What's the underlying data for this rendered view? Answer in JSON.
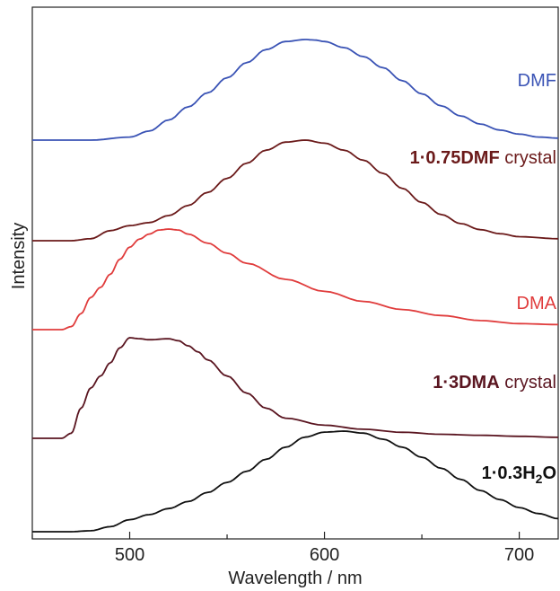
{
  "chart_data": {
    "type": "line",
    "xlabel": "Wavelength / nm",
    "ylabel": "Intensity",
    "xlim": [
      450,
      720
    ],
    "x_ticks": [
      500,
      600,
      700
    ],
    "y_ticks_labeled": false,
    "grid": false,
    "legend": "labels beside curves",
    "series": [
      {
        "name": "DMF",
        "label_parts": [
          {
            "text": "DMF",
            "bold": false,
            "sub": false
          }
        ],
        "color": "#3a53b5",
        "baseline_offset": 4,
        "x": [
          450,
          480,
          500,
          510,
          520,
          530,
          540,
          550,
          560,
          570,
          580,
          590,
          595,
          600,
          610,
          620,
          630,
          640,
          650,
          660,
          670,
          680,
          690,
          700,
          710,
          720
        ],
        "y": [
          0.0,
          0.0,
          0.03,
          0.09,
          0.2,
          0.33,
          0.47,
          0.62,
          0.77,
          0.9,
          0.98,
          1.0,
          0.995,
          0.98,
          0.92,
          0.83,
          0.72,
          0.59,
          0.46,
          0.34,
          0.24,
          0.16,
          0.1,
          0.06,
          0.03,
          0.02
        ]
      },
      {
        "name": "1·0.75DMF crystal",
        "label_parts": [
          {
            "text": "1·0.75DMF",
            "bold": true,
            "sub": false
          },
          {
            "text": " crystal",
            "bold": false,
            "sub": false
          }
        ],
        "color": "#6b1a1a",
        "baseline_offset": 3,
        "x": [
          450,
          470,
          480,
          490,
          500,
          510,
          520,
          530,
          540,
          550,
          560,
          570,
          580,
          590,
          600,
          610,
          620,
          630,
          640,
          650,
          660,
          670,
          680,
          690,
          700,
          720
        ],
        "y": [
          0.0,
          0.0,
          0.02,
          0.1,
          0.15,
          0.18,
          0.25,
          0.35,
          0.48,
          0.62,
          0.77,
          0.9,
          0.98,
          1.0,
          0.97,
          0.9,
          0.8,
          0.67,
          0.52,
          0.38,
          0.26,
          0.17,
          0.11,
          0.07,
          0.04,
          0.02
        ]
      },
      {
        "name": "DMA",
        "label_parts": [
          {
            "text": "DMA",
            "bold": false,
            "sub": false
          }
        ],
        "color": "#e03c3c",
        "baseline_offset": 2,
        "x": [
          450,
          465,
          470,
          475,
          480,
          485,
          490,
          495,
          500,
          505,
          510,
          515,
          520,
          525,
          530,
          540,
          550,
          560,
          580,
          600,
          620,
          640,
          660,
          680,
          700,
          720
        ],
        "y": [
          0.0,
          0.0,
          0.03,
          0.16,
          0.32,
          0.42,
          0.55,
          0.7,
          0.82,
          0.9,
          0.95,
          0.99,
          1.0,
          0.99,
          0.95,
          0.86,
          0.76,
          0.66,
          0.5,
          0.38,
          0.28,
          0.2,
          0.14,
          0.09,
          0.06,
          0.05
        ]
      },
      {
        "name": "1·3DMA crystal",
        "label_parts": [
          {
            "text": "1·3DMA",
            "bold": true,
            "sub": false
          },
          {
            "text": " crystal",
            "bold": false,
            "sub": false
          }
        ],
        "color": "#5a1520",
        "baseline_offset": 1,
        "x": [
          450,
          465,
          470,
          475,
          480,
          485,
          490,
          495,
          500,
          505,
          510,
          520,
          525,
          530,
          535,
          540,
          550,
          560,
          570,
          580,
          600,
          620,
          640,
          660,
          680,
          700,
          720
        ],
        "y": [
          0.0,
          0.0,
          0.05,
          0.3,
          0.5,
          0.62,
          0.75,
          0.9,
          1.0,
          0.99,
          0.98,
          0.99,
          0.97,
          0.92,
          0.86,
          0.78,
          0.62,
          0.45,
          0.3,
          0.2,
          0.13,
          0.09,
          0.06,
          0.04,
          0.03,
          0.02,
          0.01
        ]
      },
      {
        "name": "1·0.3H2O",
        "label_parts": [
          {
            "text": "1·0.3H",
            "bold": true,
            "sub": false
          },
          {
            "text": "2",
            "bold": true,
            "sub": true
          },
          {
            "text": "O",
            "bold": true,
            "sub": false
          }
        ],
        "color": "#111111",
        "baseline_offset": 0,
        "x": [
          450,
          470,
          480,
          490,
          500,
          510,
          520,
          530,
          540,
          550,
          560,
          570,
          580,
          590,
          600,
          610,
          620,
          630,
          640,
          650,
          660,
          670,
          680,
          690,
          700,
          710,
          720
        ],
        "y": [
          0.0,
          0.0,
          0.01,
          0.05,
          0.12,
          0.17,
          0.23,
          0.3,
          0.39,
          0.49,
          0.6,
          0.72,
          0.84,
          0.94,
          0.99,
          1.0,
          0.98,
          0.92,
          0.84,
          0.74,
          0.63,
          0.52,
          0.41,
          0.32,
          0.24,
          0.18,
          0.13
        ]
      }
    ]
  }
}
